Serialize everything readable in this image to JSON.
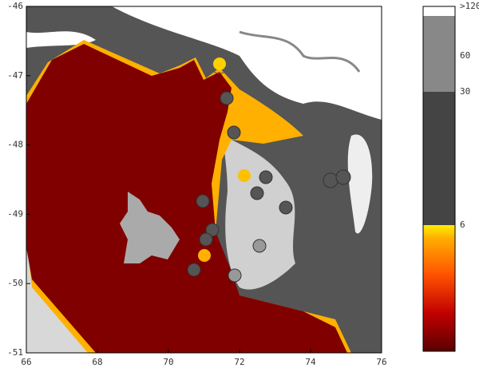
{
  "chart_data": {
    "type": "map",
    "xlim": [
      66,
      76
    ],
    "ylim": [
      -51,
      -46
    ],
    "xticks": [
      66,
      68,
      70,
      72,
      74,
      76
    ],
    "yticks": [
      -46,
      -47,
      -48,
      -49,
      -50,
      -51
    ],
    "colorbar": {
      "labels": [
        ">120",
        "60",
        "30",
        "6"
      ]
    }
  }
}
